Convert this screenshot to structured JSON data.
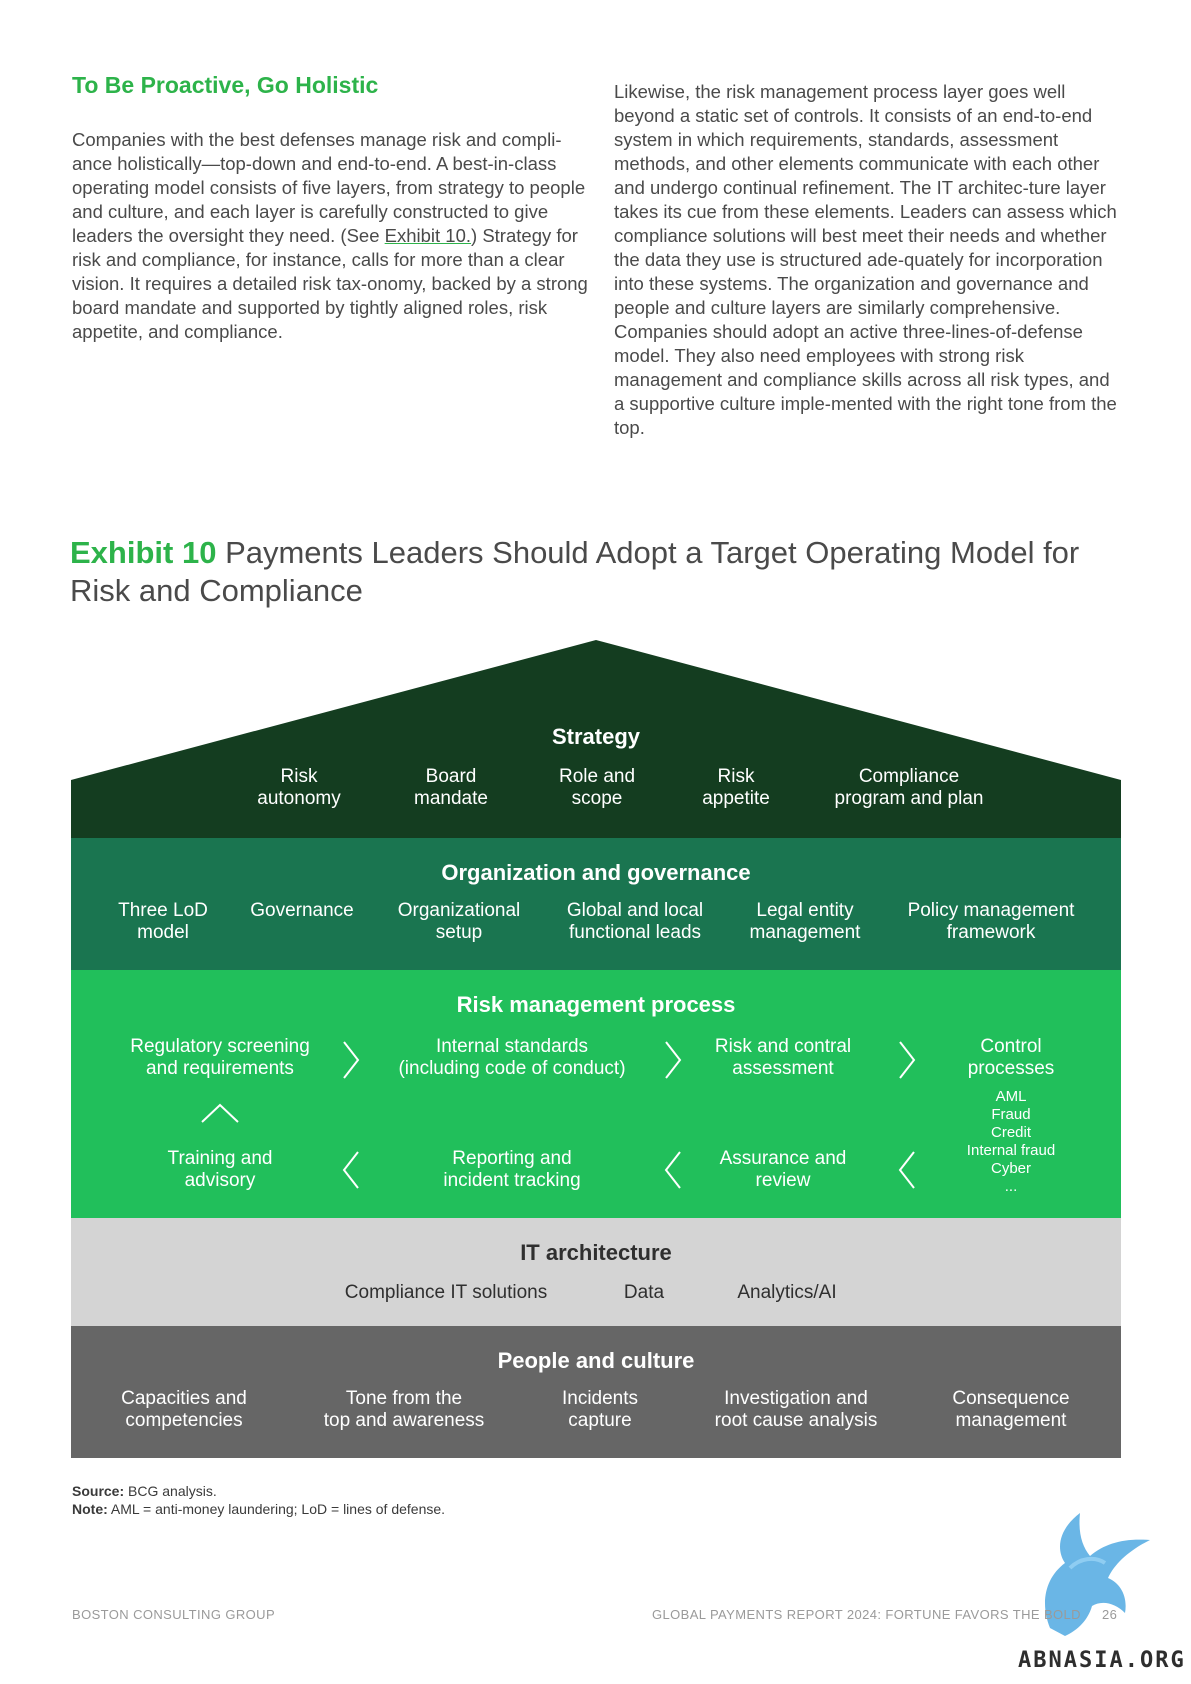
{
  "left": {
    "heading": "To Be Proactive, Go Holistic",
    "para_before": "Companies with the best defenses manage risk and compli-ance holistically—top-down and end-to-end. A best-in-class operating model consists of five layers, from strategy to people and culture, and each layer is carefully constructed to give leaders the oversight they need. (See",
    "link": "Exhibit 10.",
    "para_after": ") Strategy for risk and compliance, for instance, calls for more than a clear vision. It requires a detailed risk tax-onomy, backed by a strong board mandate and supported by tightly aligned roles, risk appetite, and compliance."
  },
  "right": {
    "para": "Likewise, the risk management process layer goes well beyond a static set of controls. It consists of an end-to-end system in which requirements, standards, assessment methods, and other elements communicate with each other and undergo continual refinement. The IT architec-ture layer takes its cue from these elements. Leaders can assess which compliance solutions will best meet their needs and whether the data they use is structured ade-quately for incorporation into these systems. The organization and governance and people and culture layers are similarly comprehensive. Companies should adopt an active three-lines-of-defense model. They also need employees with strong risk management and compliance skills across all risk types, and a supportive culture imple-mented with the right tone from the top."
  },
  "exhibit": {
    "label": "Exhibit 10",
    "title": "Payments Leaders Should Adopt a Target Operating Model for Risk and Compliance"
  },
  "diagram": {
    "colors": {
      "strategy": "#143d20",
      "org": "#1a7550",
      "risk": "#21bf5b",
      "it": "#d4d4d4",
      "people": "#666666"
    },
    "strategy": {
      "title": "Strategy",
      "items": [
        "Risk\nautonomy",
        "Board\nmandate",
        "Role and\nscope",
        "Risk\nappetite",
        "Compliance\nprogram and plan"
      ]
    },
    "org": {
      "title": "Organization and governance",
      "items": [
        "Three LoD\nmodel",
        "Governance",
        "Organizational\nsetup",
        "Global and local\nfunctional leads",
        "Legal entity\nmanagement",
        "Policy management\nframework"
      ]
    },
    "risk": {
      "title": "Risk management process",
      "top": [
        "Regulatory screening\nand requirements",
        "Internal standards\n(including code of conduct)",
        "Risk and contral\nassessment",
        "Control\nprocesses"
      ],
      "bottom": [
        "Training and\nadvisory",
        "Reporting and\nincident tracking",
        "Assurance and\nreview"
      ],
      "control_list": [
        "AML",
        "Fraud",
        "Credit",
        "Internal fraud",
        "Cyber",
        "..."
      ]
    },
    "it": {
      "title": "IT architecture",
      "items": [
        "Compliance IT solutions",
        "Data",
        "Analytics/AI"
      ]
    },
    "people": {
      "title": "People and culture",
      "items": [
        "Capacities and\ncompetencies",
        "Tone from the\ntop and awareness",
        "Incidents\ncapture",
        "Investigation and\nroot cause analysis",
        "Consequence\nmanagement"
      ]
    }
  },
  "notes": {
    "source_label": "Source:",
    "source_text": " BCG analysis.",
    "note_label": "Note:",
    "note_text": " AML = anti-money laundering; LoD = lines of defense."
  },
  "footer": {
    "left": "BOSTON CONSULTING GROUP",
    "right": "GLOBAL PAYMENTS REPORT 2024: FORTUNE FAVORS THE BOLD",
    "page": "26"
  },
  "watermark": {
    "text": "ABNASIA.ORG"
  }
}
